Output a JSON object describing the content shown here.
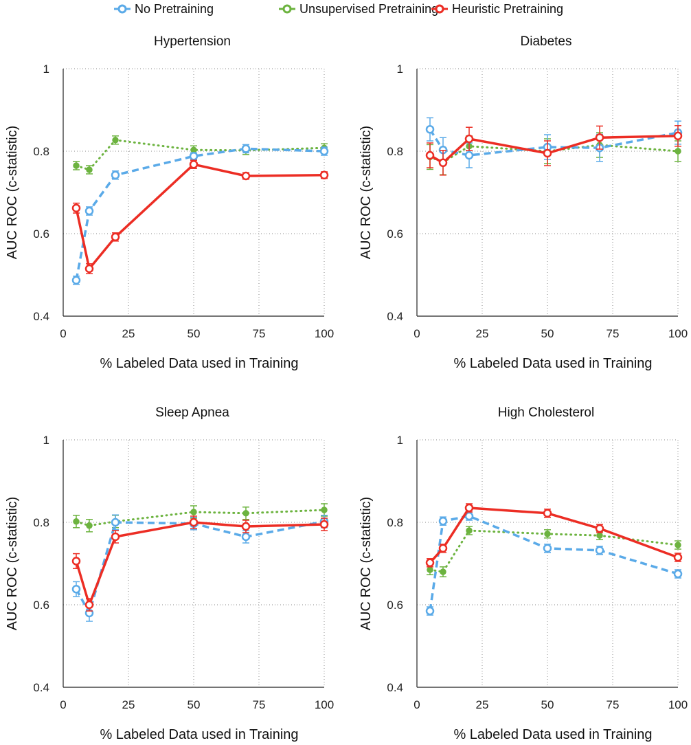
{
  "legend": [
    {
      "name": "No Pretraining",
      "color": "#5aaae8"
    },
    {
      "name": "Unsupervised Pretraining",
      "color": "#6cb33f"
    },
    {
      "name": "Heuristic Pretraining",
      "color": "#ec2d24"
    }
  ],
  "chart_data": [
    {
      "type": "line",
      "title": "Hypertension",
      "xlabel": "% Labeled Data used in Training",
      "ylabel": "AUC ROC (c-statistic)",
      "xlim": [
        0,
        100
      ],
      "ylim": [
        0.4,
        1
      ],
      "xticks": [
        "0",
        "25",
        "50",
        "75",
        "100"
      ],
      "yticks": [
        "0.4",
        "0.6",
        "0.8",
        "1"
      ],
      "grid": true,
      "x": [
        5,
        10,
        20,
        50,
        70,
        100
      ],
      "series": [
        {
          "name": "No Pretraining",
          "values": [
            0.487,
            0.655,
            0.742,
            0.788,
            0.806,
            0.8
          ],
          "errors": [
            0.01,
            0.01,
            0.01,
            0.008,
            0.01,
            0.01
          ]
        },
        {
          "name": "Unsupervised Pretraining",
          "values": [
            0.765,
            0.755,
            0.827,
            0.803,
            0.802,
            0.808
          ],
          "errors": [
            0.01,
            0.01,
            0.01,
            0.01,
            0.01,
            0.01
          ]
        },
        {
          "name": "Heuristic Pretraining",
          "values": [
            0.662,
            0.515,
            0.592,
            0.768,
            0.74,
            0.742
          ],
          "errors": [
            0.012,
            0.012,
            0.01,
            0.01,
            0.008,
            0.008
          ]
        }
      ]
    },
    {
      "type": "line",
      "title": "Diabetes",
      "xlabel": "% Labeled Data used in Training",
      "ylabel": "AUC ROC (c-statistic)",
      "xlim": [
        0,
        100
      ],
      "ylim": [
        0.4,
        1
      ],
      "xticks": [
        "0",
        "25",
        "50",
        "75",
        "100"
      ],
      "yticks": [
        "0.4",
        "0.6",
        "0.8",
        "1"
      ],
      "grid": true,
      "x": [
        5,
        10,
        20,
        50,
        70,
        100
      ],
      "series": [
        {
          "name": "No Pretraining",
          "values": [
            0.853,
            0.803,
            0.79,
            0.81,
            0.808,
            0.845
          ],
          "errors": [
            0.028,
            0.03,
            0.03,
            0.03,
            0.033,
            0.028
          ]
        },
        {
          "name": "Unsupervised Pretraining",
          "values": [
            0.786,
            0.773,
            0.812,
            0.8,
            0.815,
            0.8
          ],
          "errors": [
            0.03,
            0.03,
            0.025,
            0.03,
            0.03,
            0.025
          ]
        },
        {
          "name": "Heuristic Pretraining",
          "values": [
            0.79,
            0.772,
            0.83,
            0.795,
            0.833,
            0.837
          ],
          "errors": [
            0.03,
            0.03,
            0.028,
            0.03,
            0.028,
            0.025
          ]
        }
      ]
    },
    {
      "type": "line",
      "title": "Sleep Apnea",
      "xlabel": "% Labeled Data used in Training",
      "ylabel": "AUC ROC (c-statistic)",
      "xlim": [
        0,
        100
      ],
      "ylim": [
        0.4,
        1
      ],
      "xticks": [
        "0",
        "25",
        "50",
        "75",
        "100"
      ],
      "yticks": [
        "0.4",
        "0.6",
        "0.8",
        "1"
      ],
      "grid": true,
      "x": [
        5,
        10,
        20,
        50,
        70,
        100
      ],
      "series": [
        {
          "name": "No Pretraining",
          "values": [
            0.638,
            0.58,
            0.8,
            0.797,
            0.765,
            0.802
          ],
          "errors": [
            0.018,
            0.02,
            0.018,
            0.015,
            0.015,
            0.015
          ]
        },
        {
          "name": "Unsupervised Pretraining",
          "values": [
            0.802,
            0.792,
            0.802,
            0.825,
            0.822,
            0.83
          ],
          "errors": [
            0.015,
            0.015,
            0.015,
            0.015,
            0.015,
            0.015
          ]
        },
        {
          "name": "Heuristic Pretraining",
          "values": [
            0.706,
            0.6,
            0.765,
            0.8,
            0.79,
            0.795
          ],
          "errors": [
            0.018,
            0.015,
            0.015,
            0.015,
            0.015,
            0.015
          ]
        }
      ]
    },
    {
      "type": "line",
      "title": "High Cholesterol",
      "xlabel": "% Labeled Data used in Training",
      "ylabel": "AUC ROC (c-statistic)",
      "xlim": [
        0,
        100
      ],
      "ylim": [
        0.4,
        1
      ],
      "xticks": [
        "0",
        "25",
        "50",
        "75",
        "100"
      ],
      "yticks": [
        "0.4",
        "0.6",
        "0.8",
        "1"
      ],
      "grid": true,
      "x": [
        5,
        10,
        20,
        50,
        70,
        100
      ],
      "series": [
        {
          "name": "No Pretraining",
          "values": [
            0.585,
            0.803,
            0.815,
            0.737,
            0.732,
            0.675
          ],
          "errors": [
            0.01,
            0.01,
            0.01,
            0.01,
            0.01,
            0.01
          ]
        },
        {
          "name": "Unsupervised Pretraining",
          "values": [
            0.685,
            0.68,
            0.78,
            0.772,
            0.768,
            0.745
          ],
          "errors": [
            0.012,
            0.012,
            0.01,
            0.01,
            0.01,
            0.01
          ]
        },
        {
          "name": "Heuristic Pretraining",
          "values": [
            0.702,
            0.737,
            0.835,
            0.822,
            0.785,
            0.715
          ],
          "errors": [
            0.01,
            0.01,
            0.01,
            0.01,
            0.01,
            0.01
          ]
        }
      ]
    }
  ]
}
